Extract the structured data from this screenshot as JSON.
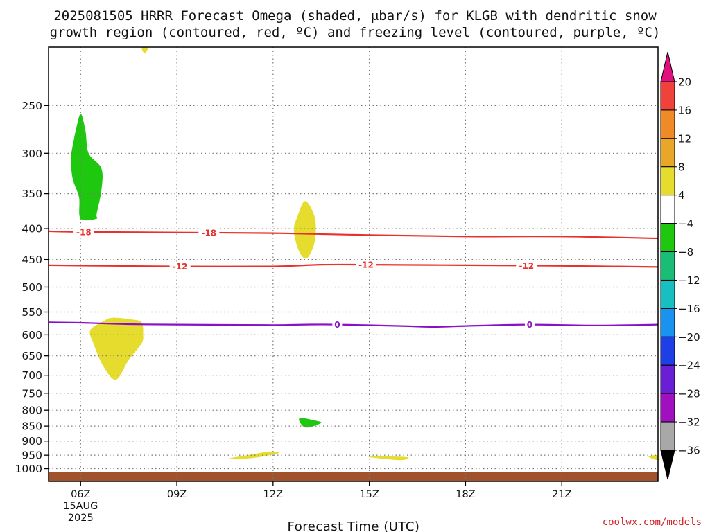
{
  "title": {
    "line1": "2025081505 HRRR Forecast Omega (shaded, μbar/s) for KLGB with dendritic snow",
    "line2": "growth region (contoured, red, ºC) and freezing level (contoured, purple, ºC)"
  },
  "credit": "coolwx.com/models",
  "colors": {
    "dgz_contour": "#e8302c",
    "freezing_contour": "#8b0fc7",
    "ground": "#a0522d",
    "grid": "#777777"
  },
  "chart_data": {
    "type": "heatmap",
    "title": "2025081505 HRRR Forecast Omega (shaded, μbar/s) for KLGB with dendritic snow growth region (contoured, red, ºC) and freezing level (contoured, purple, ºC)",
    "xlabel": "Forecast Time (UTC)",
    "ylabel": "",
    "x_unit": "hours UTC on 15 AUG 2025",
    "xlim": [
      5,
      24
    ],
    "ylim": [
      1050,
      200
    ],
    "y_scale": "log-pressure (hPa)",
    "grid": true,
    "x_ticks": [
      {
        "value": 6,
        "label": "06Z",
        "sub": [
          "15AUG",
          "2025"
        ]
      },
      {
        "value": 9,
        "label": "09Z",
        "sub": []
      },
      {
        "value": 12,
        "label": "12Z",
        "sub": []
      },
      {
        "value": 15,
        "label": "15Z",
        "sub": []
      },
      {
        "value": 18,
        "label": "18Z",
        "sub": []
      },
      {
        "value": 21,
        "label": "21Z",
        "sub": []
      }
    ],
    "y_ticks": [
      250,
      300,
      350,
      400,
      450,
      500,
      550,
      600,
      650,
      700,
      750,
      800,
      850,
      900,
      950,
      1000
    ],
    "y_tick_labels": [
      "250",
      "300",
      "350",
      "400",
      "450",
      "500",
      "550",
      "600",
      "650",
      "700",
      "750",
      "800",
      "850",
      "900",
      "950",
      "1000"
    ],
    "colorbar": {
      "unit": "μbar/s",
      "top_arrow_color": "#e0117f",
      "bottom_arrow_color": "#000000",
      "bins": [
        {
          "from": 16,
          "to": 20,
          "color": "#f0413a"
        },
        {
          "from": 12,
          "to": 16,
          "color": "#ef8a27"
        },
        {
          "from": 8,
          "to": 12,
          "color": "#e9a72a"
        },
        {
          "from": 4,
          "to": 8,
          "color": "#e6dc2e"
        },
        {
          "from": -4,
          "to": 4,
          "color": "#ffffff"
        },
        {
          "from": -8,
          "to": -4,
          "color": "#1ec80f"
        },
        {
          "from": -12,
          "to": -8,
          "color": "#1abd76"
        },
        {
          "from": -16,
          "to": -12,
          "color": "#18bfc0"
        },
        {
          "from": -20,
          "to": -16,
          "color": "#1a92ef"
        },
        {
          "from": -24,
          "to": -20,
          "color": "#1f3fe6"
        },
        {
          "from": -28,
          "to": -24,
          "color": "#6a1fd6"
        },
        {
          "from": -32,
          "to": -28,
          "color": "#a010c0"
        },
        {
          "from": -36,
          "to": -32,
          "color": "#a8a8a8"
        }
      ],
      "labels": [
        "20",
        "16",
        "12",
        "8",
        "4",
        "−4",
        "−8",
        "−12",
        "−16",
        "−20",
        "−24",
        "−28",
        "−32",
        "−36"
      ]
    },
    "shaded_regions": [
      {
        "name": "omega-rise-upper-left",
        "class": "-8 to -4",
        "color": "#1ec80f",
        "outline": [
          [
            6.0,
            258
          ],
          [
            6.15,
            275
          ],
          [
            6.25,
            300
          ],
          [
            6.65,
            318
          ],
          [
            6.65,
            345
          ],
          [
            6.5,
            378
          ],
          [
            6.5,
            385
          ],
          [
            6.0,
            385
          ],
          [
            5.95,
            355
          ],
          [
            5.75,
            330
          ],
          [
            5.7,
            305
          ],
          [
            5.8,
            283
          ],
          [
            5.85,
            275
          ],
          [
            6.0,
            258
          ]
        ]
      },
      {
        "name": "omega-sink-top-cap",
        "class": "4 to 8",
        "color": "#e6dc2e",
        "outline": [
          [
            7.9,
            200
          ],
          [
            8.1,
            200
          ],
          [
            8.0,
            205
          ],
          [
            7.9,
            200
          ]
        ]
      },
      {
        "name": "omega-sink-400",
        "class": "4 to 8",
        "color": "#e6dc2e",
        "outline": [
          [
            13.0,
            360
          ],
          [
            13.3,
            383
          ],
          [
            13.3,
            420
          ],
          [
            13.05,
            448
          ],
          [
            12.8,
            435
          ],
          [
            12.65,
            403
          ],
          [
            12.75,
            383
          ],
          [
            13.0,
            360
          ]
        ]
      },
      {
        "name": "omega-sink-600",
        "class": "4 to 8",
        "color": "#e6dc2e",
        "outline": [
          [
            7.0,
            562
          ],
          [
            7.6,
            566
          ],
          [
            7.9,
            572
          ],
          [
            7.95,
            598
          ],
          [
            7.9,
            620
          ],
          [
            7.5,
            660
          ],
          [
            7.1,
            712
          ],
          [
            6.7,
            675
          ],
          [
            6.4,
            620
          ],
          [
            6.3,
            590
          ],
          [
            6.7,
            570
          ],
          [
            7.0,
            562
          ]
        ]
      },
      {
        "name": "omega-rise-850",
        "class": "-8 to -4",
        "color": "#1ec80f",
        "outline": [
          [
            12.85,
            824
          ],
          [
            13.3,
            832
          ],
          [
            13.5,
            840
          ],
          [
            13.05,
            855
          ],
          [
            12.85,
            840
          ],
          [
            12.85,
            824
          ]
        ]
      },
      {
        "name": "omega-sink-950-a",
        "class": "4 to 8",
        "color": "#e6dc2e",
        "outline": [
          [
            10.6,
            963
          ],
          [
            11.3,
            948
          ],
          [
            11.9,
            937
          ],
          [
            12.2,
            941
          ],
          [
            11.8,
            952
          ],
          [
            11.2,
            962
          ],
          [
            10.6,
            963
          ]
        ]
      },
      {
        "name": "omega-sink-950-b",
        "class": "4 to 8",
        "color": "#e6dc2e",
        "outline": [
          [
            15.0,
            955
          ],
          [
            15.8,
            955
          ],
          [
            16.2,
            958
          ],
          [
            16.0,
            968
          ],
          [
            15.2,
            960
          ],
          [
            15.0,
            955
          ]
        ]
      },
      {
        "name": "omega-sink-950-c",
        "class": "4 to 8",
        "color": "#e6dc2e",
        "outline": [
          [
            23.7,
            955
          ],
          [
            24.0,
            950
          ],
          [
            24.0,
            968
          ],
          [
            23.7,
            955
          ]
        ]
      }
    ],
    "contours": [
      {
        "name": "dgz-minus-18",
        "level": -18,
        "label": "-18",
        "color": "#e8302c",
        "points": [
          [
            5.0,
            404
          ],
          [
            6.0,
            405
          ],
          [
            9.0,
            406
          ],
          [
            12.0,
            407
          ],
          [
            15.0,
            410
          ],
          [
            18.0,
            412
          ],
          [
            21.0,
            412
          ],
          [
            24.0,
            415
          ]
        ],
        "label_x": [
          6.1,
          10.0
        ]
      },
      {
        "name": "dgz-minus-12",
        "level": -12,
        "label": "-12",
        "color": "#e8302c",
        "points": [
          [
            5.0,
            460
          ],
          [
            7.0,
            461
          ],
          [
            9.0,
            462
          ],
          [
            12.0,
            462
          ],
          [
            13.5,
            459
          ],
          [
            15.0,
            459
          ],
          [
            18.0,
            460
          ],
          [
            21.0,
            461
          ],
          [
            24.0,
            463
          ]
        ],
        "label_x": [
          9.1,
          14.9,
          19.9
        ]
      },
      {
        "name": "freezing-level-0",
        "level": 0,
        "label": "0",
        "color": "#8b0fc7",
        "points": [
          [
            5.0,
            572
          ],
          [
            6.0,
            573
          ],
          [
            7.5,
            576
          ],
          [
            9.0,
            577
          ],
          [
            12.0,
            578
          ],
          [
            13.0,
            577
          ],
          [
            14.0,
            577
          ],
          [
            16.0,
            580
          ],
          [
            17.0,
            582
          ],
          [
            18.0,
            580
          ],
          [
            20.0,
            577
          ],
          [
            22.0,
            579
          ],
          [
            24.0,
            577
          ]
        ],
        "label_x": [
          14.0,
          20.0
        ]
      }
    ],
    "ground": {
      "from_p": 1012,
      "to_p": 1050,
      "color": "#a0522d"
    }
  }
}
